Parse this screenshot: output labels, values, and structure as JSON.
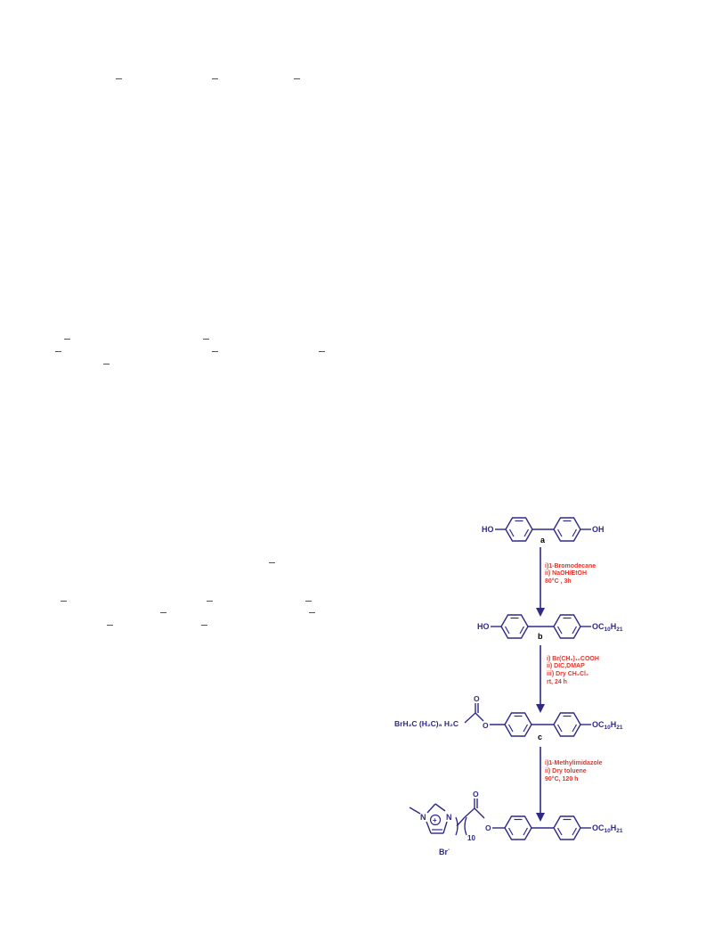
{
  "scheme": {
    "compounds": {
      "a": {
        "label": "a",
        "left_group": "HO",
        "right_group": "OH"
      },
      "b": {
        "label": "b",
        "left_group": "HO",
        "right_group": "OC",
        "right_sub1": "10",
        "right_h": "H",
        "right_sub2": "21"
      },
      "c": {
        "label": "c",
        "chain": "BrH₂C (H₂C)₈ H₂C",
        "ester_o": "O",
        "carbonyl_o": "O",
        "right_group": "OC",
        "right_sub1": "10",
        "right_h": "H",
        "right_sub2": "21"
      },
      "d": {
        "methyl_n": "N",
        "ring_n": "N",
        "plus": "+",
        "chain_n": "10",
        "ester_o": "O",
        "carbonyl_o": "O",
        "counter_ion": "Br",
        "counter_charge": "-",
        "right_group": "OC",
        "right_sub1": "10",
        "right_h": "H",
        "right_sub2": "21"
      }
    },
    "conditions": {
      "step1": [
        "i)1-Bromodecane",
        "ii)      NaOH/EtOH",
        "80°C , 3h"
      ],
      "step2": [
        "i) Br(CH₂)₁₀COOH",
        "ii) DIC,DMAP",
        "iii) Dry CH₂Cl₂",
        "rt, 24 h"
      ],
      "step3": [
        "i)1-Methylimidazole",
        "ii)      Dry      toluene",
        "90°C, 120 h"
      ]
    },
    "colors": {
      "structure": "#2e2a86",
      "conditions": "#e8332a",
      "labels": "#000000"
    }
  }
}
